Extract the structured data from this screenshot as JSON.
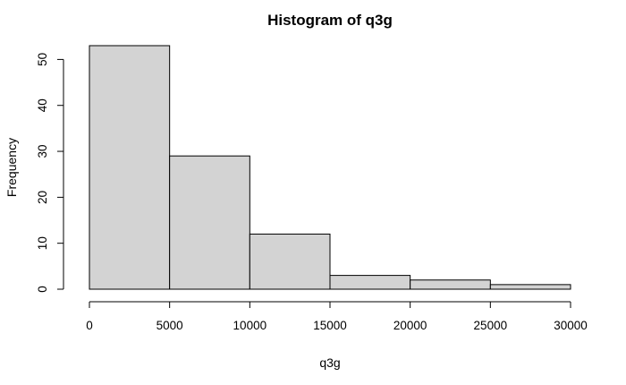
{
  "chart_data": {
    "type": "bar",
    "title": "Histogram of q3g",
    "xlabel": "q3g",
    "ylabel": "Frequency",
    "bins": [
      {
        "start": 0,
        "end": 5000,
        "count": 53
      },
      {
        "start": 5000,
        "end": 10000,
        "count": 29
      },
      {
        "start": 10000,
        "end": 15000,
        "count": 12
      },
      {
        "start": 15000,
        "end": 20000,
        "count": 3
      },
      {
        "start": 20000,
        "end": 25000,
        "count": 2
      },
      {
        "start": 25000,
        "end": 30000,
        "count": 1
      }
    ],
    "xlim": [
      0,
      30000
    ],
    "ylim": [
      0,
      53
    ],
    "x_ticks": [
      "0",
      "5000",
      "10000",
      "15000",
      "20000",
      "25000",
      "30000"
    ],
    "y_ticks": [
      "0",
      "10",
      "20",
      "30",
      "40",
      "50"
    ],
    "bar_color": "#d3d3d3",
    "grid": false,
    "legend": "none"
  }
}
